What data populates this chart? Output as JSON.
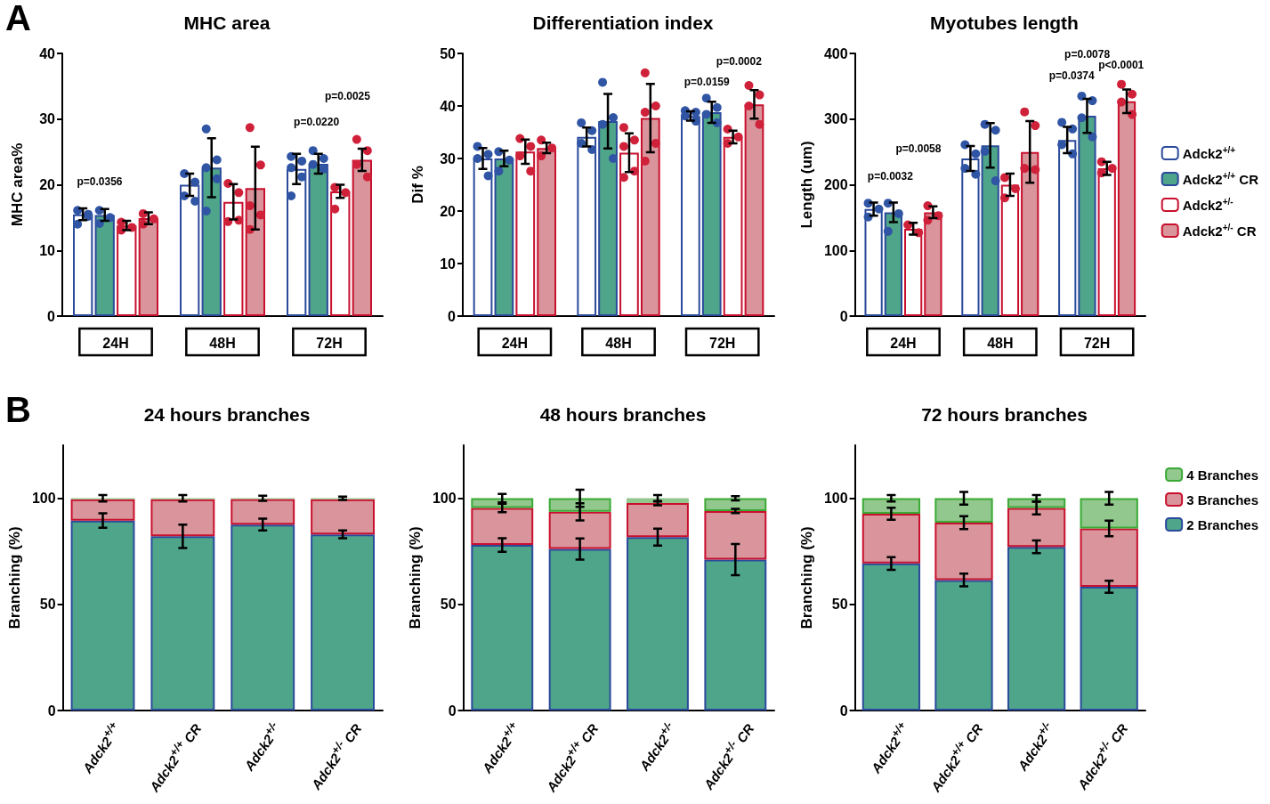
{
  "chart_data": [
    {
      "type": "bar",
      "title": "MHC area",
      "ylabel": "MHC area%",
      "categories": [
        "24H",
        "48H",
        "72H"
      ],
      "ylim": [
        0,
        40
      ],
      "yticks": [
        0,
        10,
        20,
        30,
        40
      ],
      "annotations": [
        "A",
        "p=0.0356",
        "p=0.0220",
        "p=0.0025"
      ],
      "series": [
        {
          "color": "#ffffff",
          "values": [
            15.5,
            20.0,
            22.4
          ],
          "errors": [
            0.9,
            1.7,
            2.3
          ]
        },
        {
          "color": "#4fa58a",
          "values": [
            15.4,
            22.6,
            23.2
          ],
          "errors": [
            0.9,
            4.5,
            1.5
          ]
        },
        {
          "color": "#ffffff",
          "values": [
            13.8,
            17.4,
            19.0
          ],
          "errors": [
            0.7,
            2.7,
            1.0
          ]
        },
        {
          "color": "#d9959b",
          "values": [
            14.9,
            19.5,
            23.8
          ],
          "errors": [
            0.9,
            6.3,
            1.7
          ]
        },
        {
          "type": "scatter",
          "color": "#2f55a4",
          "x": [
            "24H",
            "24H",
            "24H",
            "24H",
            "48H",
            "48H",
            "48H",
            "48H",
            "72H",
            "72H",
            "72H",
            "72H",
            "72H"
          ],
          "values": [
            16.1,
            15.5,
            14.0,
            15.2,
            21.7,
            20.4,
            18.3,
            17.5,
            24.3,
            23.6,
            22.6,
            21.2,
            18.3
          ]
        },
        {
          "type": "scatter",
          "color": "#2f55a4",
          "x": [
            "24H",
            "24H",
            "24H",
            "48H",
            "48H",
            "48H",
            "48H",
            "48H",
            "72H",
            "72H",
            "72H",
            "72H"
          ],
          "values": [
            16.1,
            15.0,
            14.1,
            28.5,
            23.8,
            22.6,
            20.9,
            16.0,
            25.2,
            24.0,
            23.1,
            22.4
          ]
        },
        {
          "type": "scatter",
          "color": "#d0213a",
          "x": [
            "24H",
            "24H",
            "24H",
            "48H",
            "48H",
            "48H",
            "48H",
            "72H",
            "72H",
            "72H"
          ],
          "values": [
            14.3,
            13.5,
            13.1,
            20.2,
            18.8,
            14.4,
            14.6,
            19.6,
            18.8,
            16.3
          ]
        },
        {
          "type": "scatter",
          "color": "#d0213a",
          "x": [
            "24H",
            "24H",
            "24H",
            "48H",
            "48H",
            "48H",
            "48H",
            "48H",
            "72H",
            "72H",
            "72H",
            "72H"
          ],
          "values": [
            15.6,
            14.8,
            14.0,
            28.7,
            23.0,
            16.8,
            15.4,
            13.2,
            26.9,
            25.2,
            23.1,
            21.2
          ]
        }
      ]
    },
    {
      "type": "bar",
      "title": "Differentiation index",
      "ylabel": "Dif %",
      "categories": [
        "24H",
        "48H",
        "72H"
      ],
      "ylim": [
        0,
        50
      ],
      "yticks": [
        0,
        10,
        20,
        30,
        40,
        50
      ],
      "annotations": [
        "p=0.0159",
        "p=0.0002"
      ],
      "series": [
        {
          "color": "#ffffff",
          "values": [
            30.0,
            34.1,
            38.1
          ],
          "errors": [
            2.0,
            1.8,
            0.9
          ]
        },
        {
          "color": "#4fa58a",
          "values": [
            30.0,
            37.1,
            38.8
          ],
          "errors": [
            1.5,
            5.2,
            2.0
          ]
        },
        {
          "color": "#ffffff",
          "values": [
            31.3,
            31.1,
            34.1
          ],
          "errors": [
            2.3,
            3.7,
            1.2
          ]
        },
        {
          "color": "#d9959b",
          "values": [
            32.0,
            37.7,
            40.3
          ],
          "errors": [
            1.0,
            6.5,
            2.7
          ]
        },
        {
          "type": "scatter",
          "color": "#2f55a4",
          "x": [
            "24H",
            "24H",
            "24H",
            "24H",
            "48H",
            "48H",
            "48H",
            "48H",
            "72H",
            "72H",
            "72H",
            "72H"
          ],
          "values": [
            32.3,
            30.8,
            30.0,
            26.7,
            36.8,
            35.3,
            32.9,
            31.7,
            39.1,
            38.8,
            38.1,
            37.1
          ]
        },
        {
          "type": "scatter",
          "color": "#2f55a4",
          "x": [
            "24H",
            "24H",
            "24H",
            "48H",
            "48H",
            "48H",
            "48H",
            "72H",
            "72H",
            "72H",
            "72H"
          ],
          "values": [
            31.3,
            29.7,
            27.6,
            44.5,
            37.8,
            36.5,
            30.0,
            41.5,
            39.7,
            38.4,
            36.8
          ]
        },
        {
          "type": "scatter",
          "color": "#d0213a",
          "x": [
            "24H",
            "24H",
            "24H",
            "24H",
            "48H",
            "48H",
            "48H",
            "48H",
            "48H",
            "72H",
            "72H",
            "72H"
          ],
          "values": [
            33.8,
            32.3,
            30.5,
            27.6,
            35.9,
            33.5,
            32.3,
            27.6,
            26.4,
            35.6,
            34.1,
            32.9
          ]
        },
        {
          "type": "scatter",
          "color": "#d0213a",
          "x": [
            "24H",
            "24H",
            "24H",
            "48H",
            "48H",
            "48H",
            "48H",
            "48H",
            "72H",
            "72H",
            "72H",
            "72H"
          ],
          "values": [
            33.5,
            32.0,
            30.5,
            46.3,
            40.0,
            38.8,
            32.9,
            29.5,
            43.9,
            42.1,
            40.0,
            36.5
          ]
        }
      ]
    },
    {
      "type": "bar",
      "title": "Myotubes length",
      "ylabel": "Length (um)",
      "categories": [
        "24H",
        "48H",
        "72H"
      ],
      "ylim": [
        0,
        400
      ],
      "yticks": [
        0,
        100,
        200,
        300,
        400
      ],
      "legend": "right",
      "annotations": [
        "p=0.0032",
        "p=0.0058",
        "p=0.0078",
        "p<0.0001",
        "p=0.0374"
      ],
      "series": [
        {
          "name": "Adck2$^{+/+}$",
          "color": "#ffffff",
          "values": [
            163,
            240,
            268
          ],
          "errors": [
            10,
            19,
            20
          ]
        },
        {
          "name": "Adck2$^{+/+}$ CR",
          "color": "#4fa58a",
          "values": [
            158,
            260,
            305
          ],
          "errors": [
            15,
            34,
            26
          ]
        },
        {
          "name": "Adck2$^{+/-}$",
          "color": "#ffffff",
          "values": [
            133,
            200,
            225
          ],
          "errors": [
            9,
            17,
            10
          ]
        },
        {
          "name": "Adck2$^{+/-}$ CR",
          "color": "#d9959b",
          "values": [
            158,
            250,
            327
          ],
          "errors": [
            9,
            47,
            18
          ]
        },
        {
          "type": "scatter",
          "color": "#2f55a4",
          "x": [
            "24H",
            "24H",
            "24H",
            "48H",
            "48H",
            "48H",
            "48H",
            "72H",
            "72H",
            "72H",
            "72H"
          ],
          "values": [
            172,
            163,
            151,
            261,
            247,
            225,
            216,
            295,
            285,
            261,
            247
          ]
        },
        {
          "type": "scatter",
          "color": "#2f55a4",
          "x": [
            "24H",
            "24H",
            "24H",
            "48H",
            "48H",
            "48H",
            "48H",
            "72H",
            "72H",
            "72H",
            "72H"
          ],
          "values": [
            172,
            156,
            129,
            292,
            283,
            251,
            206,
            335,
            328,
            302,
            273
          ]
        },
        {
          "type": "scatter",
          "color": "#d0213a",
          "x": [
            "24H",
            "24H",
            "48H",
            "48H",
            "48H",
            "72H",
            "72H",
            "72H"
          ],
          "values": [
            139,
            127,
            211,
            194,
            180,
            235,
            225,
            218
          ]
        },
        {
          "type": "scatter",
          "color": "#d0213a",
          "x": [
            "24H",
            "24H",
            "24H",
            "48H",
            "48H",
            "48H",
            "48H",
            "72H",
            "72H",
            "72H",
            "72H"
          ],
          "values": [
            168,
            153,
            146,
            311,
            290,
            225,
            223,
            353,
            338,
            326,
            307
          ]
        }
      ]
    },
    {
      "type": "bar",
      "stacked": true,
      "title": "24 hours branches",
      "ylabel": "Branching (%)",
      "categories": [
        "Adck2$^{+/+}$",
        "Adck2$^{+/+}$ CR",
        "Adck2$^{+/-}$",
        "Adck2$^{+/-}$ CR"
      ],
      "ylim": [
        0,
        125
      ],
      "yticks": [
        0,
        50,
        100
      ],
      "annotations": [
        "B"
      ],
      "series": [
        {
          "color": "#4fa58a",
          "values": [
            89.5,
            82.1,
            87.6,
            83.0
          ],
          "errors": [
            3.4,
            5.5,
            2.8,
            1.8
          ]
        },
        {
          "color": "#d9959b",
          "values": [
            10.0,
            17.4,
            12.0,
            16.5
          ],
          "errors": [
            null,
            null,
            null,
            null
          ]
        },
        {
          "color": "#92c88e",
          "values": [
            0.5,
            0.5,
            0.4,
            0.5
          ],
          "errors": [
            1.5,
            1.5,
            1.2,
            0.8
          ]
        }
      ]
    },
    {
      "type": "bar",
      "stacked": true,
      "title": "48 hours branches",
      "ylabel": "Branching (%)",
      "categories": [
        "Adck2$^{+/+}$",
        "Adck2$^{+/+}$ CR",
        "Adck2$^{+/-}$",
        "Adck2$^{+/-}$ CR"
      ],
      "ylim": [
        0,
        125
      ],
      "yticks": [
        0,
        50,
        100
      ],
      "series": [
        {
          "color": "#4fa58a",
          "values": [
            78.0,
            76.1,
            81.7,
            71.1
          ],
          "errors": [
            3.2,
            5,
            4,
            7.3
          ]
        },
        {
          "color": "#d9959b",
          "values": [
            17.4,
            17.5,
            16.0,
            22.9
          ],
          "errors": [
            2,
            4,
            1,
            1
          ]
        },
        {
          "color": "#92c88e",
          "values": [
            4.6,
            6.4,
            2.3,
            6.0
          ],
          "errors": [
            2,
            4,
            1.5,
            1
          ]
        }
      ]
    },
    {
      "type": "bar",
      "stacked": true,
      "title": "72 hours branches",
      "ylabel": "Branching (%)",
      "categories": [
        "Adck2$^{+/+}$",
        "Adck2$^{+/+}$ CR",
        "Adck2$^{+/-}$",
        "Adck2$^{+/-}$ CR"
      ],
      "ylim": [
        0,
        125
      ],
      "yticks": [
        0,
        50,
        100
      ],
      "legend": "top right",
      "series": [
        {
          "name": "2 Branches",
          "color": "#4fa58a",
          "values": [
            69.3,
            61.5,
            77.1,
            58.3
          ],
          "errors": [
            3,
            3,
            3,
            2.8
          ]
        },
        {
          "name": "3 Branches",
          "color": "#d9959b",
          "values": [
            23.4,
            27.0,
            18.3,
            27.5
          ],
          "errors": [
            2.8,
            3,
            3,
            3.7
          ]
        },
        {
          "name": "4 Branches",
          "color": "#92c88e",
          "values": [
            7.3,
            11.5,
            4.6,
            14.2
          ],
          "errors": [
            1.5,
            3,
            1.5,
            3
          ]
        }
      ]
    }
  ]
}
